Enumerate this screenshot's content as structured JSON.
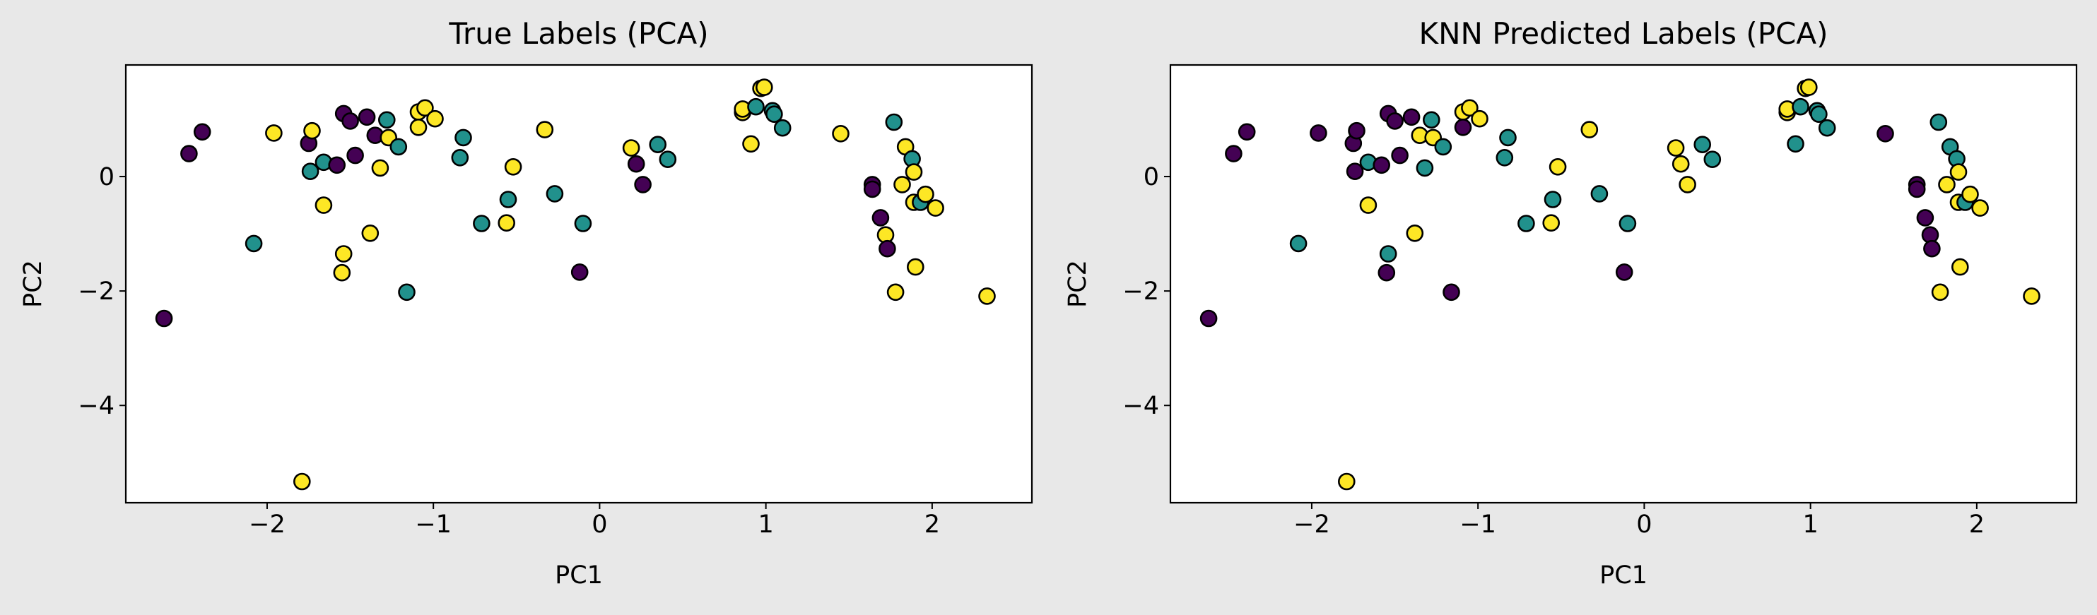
{
  "figure": {
    "background": "#e8e8e8"
  },
  "colors": {
    "purple": "#440154",
    "teal": "#21918c",
    "yellow": "#fde725",
    "edge": "#000000"
  },
  "chart_data": [
    {
      "type": "scatter",
      "title": "True Labels (PCA)",
      "xlabel": "PC1",
      "ylabel": "PC2",
      "xlim": [
        -2.85,
        2.6
      ],
      "ylim": [
        -5.7,
        1.95
      ],
      "xticks": [
        -2,
        -1,
        0,
        1,
        2
      ],
      "xtick_labels": [
        "−2",
        "−1",
        "0",
        "1",
        "2"
      ],
      "yticks": [
        0,
        -2,
        -4
      ],
      "ytick_labels": [
        "0",
        "−2",
        "−4"
      ],
      "grid": false,
      "legend": "none",
      "points": [
        {
          "x": -2.62,
          "y": -2.48,
          "c": "purple"
        },
        {
          "x": -2.47,
          "y": 0.4,
          "c": "purple"
        },
        {
          "x": -2.39,
          "y": 0.78,
          "c": "purple"
        },
        {
          "x": -2.08,
          "y": -1.17,
          "c": "teal"
        },
        {
          "x": -1.96,
          "y": 0.76,
          "c": "yellow"
        },
        {
          "x": -1.79,
          "y": -5.33,
          "c": "yellow"
        },
        {
          "x": -1.75,
          "y": 0.58,
          "c": "purple"
        },
        {
          "x": -1.74,
          "y": 0.09,
          "c": "teal"
        },
        {
          "x": -1.73,
          "y": 0.8,
          "c": "yellow"
        },
        {
          "x": -1.66,
          "y": 0.25,
          "c": "teal"
        },
        {
          "x": -1.66,
          "y": -0.5,
          "c": "yellow"
        },
        {
          "x": -1.58,
          "y": 0.2,
          "c": "purple"
        },
        {
          "x": -1.55,
          "y": -1.68,
          "c": "yellow"
        },
        {
          "x": -1.54,
          "y": -1.35,
          "c": "yellow"
        },
        {
          "x": -1.54,
          "y": 1.1,
          "c": "purple"
        },
        {
          "x": -1.5,
          "y": 0.97,
          "c": "purple"
        },
        {
          "x": -1.47,
          "y": 0.37,
          "c": "purple"
        },
        {
          "x": -1.4,
          "y": 1.04,
          "c": "purple"
        },
        {
          "x": -1.38,
          "y": -0.99,
          "c": "yellow"
        },
        {
          "x": -1.35,
          "y": 0.72,
          "c": "purple"
        },
        {
          "x": -1.32,
          "y": 0.15,
          "c": "yellow"
        },
        {
          "x": -1.28,
          "y": 0.99,
          "c": "teal"
        },
        {
          "x": -1.27,
          "y": 0.68,
          "c": "yellow"
        },
        {
          "x": -1.21,
          "y": 0.52,
          "c": "teal"
        },
        {
          "x": -1.16,
          "y": -2.02,
          "c": "teal"
        },
        {
          "x": -1.09,
          "y": 1.13,
          "c": "yellow"
        },
        {
          "x": -1.09,
          "y": 0.86,
          "c": "yellow"
        },
        {
          "x": -1.05,
          "y": 1.2,
          "c": "yellow"
        },
        {
          "x": -0.99,
          "y": 1.01,
          "c": "yellow"
        },
        {
          "x": -0.84,
          "y": 0.33,
          "c": "teal"
        },
        {
          "x": -0.82,
          "y": 0.68,
          "c": "teal"
        },
        {
          "x": -0.71,
          "y": -0.82,
          "c": "teal"
        },
        {
          "x": -0.56,
          "y": -0.81,
          "c": "yellow"
        },
        {
          "x": -0.55,
          "y": -0.4,
          "c": "teal"
        },
        {
          "x": -0.52,
          "y": 0.17,
          "c": "yellow"
        },
        {
          "x": -0.33,
          "y": 0.82,
          "c": "yellow"
        },
        {
          "x": -0.27,
          "y": -0.3,
          "c": "teal"
        },
        {
          "x": -0.12,
          "y": -1.67,
          "c": "purple"
        },
        {
          "x": -0.1,
          "y": -0.82,
          "c": "teal"
        },
        {
          "x": 0.19,
          "y": 0.5,
          "c": "yellow"
        },
        {
          "x": 0.22,
          "y": 0.22,
          "c": "purple"
        },
        {
          "x": 0.26,
          "y": -0.14,
          "c": "purple"
        },
        {
          "x": 0.35,
          "y": 0.56,
          "c": "teal"
        },
        {
          "x": 0.41,
          "y": 0.3,
          "c": "teal"
        },
        {
          "x": 0.86,
          "y": 1.12,
          "c": "yellow"
        },
        {
          "x": 0.86,
          "y": 1.18,
          "c": "yellow"
        },
        {
          "x": 0.91,
          "y": 0.57,
          "c": "yellow"
        },
        {
          "x": 0.94,
          "y": 1.22,
          "c": "teal"
        },
        {
          "x": 0.97,
          "y": 1.54,
          "c": "yellow"
        },
        {
          "x": 0.99,
          "y": 1.56,
          "c": "yellow"
        },
        {
          "x": 1.04,
          "y": 1.15,
          "c": "teal"
        },
        {
          "x": 1.05,
          "y": 1.09,
          "c": "teal"
        },
        {
          "x": 1.1,
          "y": 0.85,
          "c": "teal"
        },
        {
          "x": 1.45,
          "y": 0.75,
          "c": "yellow"
        },
        {
          "x": 1.64,
          "y": -0.14,
          "c": "purple"
        },
        {
          "x": 1.64,
          "y": -0.22,
          "c": "purple"
        },
        {
          "x": 1.69,
          "y": -0.72,
          "c": "purple"
        },
        {
          "x": 1.72,
          "y": -1.02,
          "c": "yellow"
        },
        {
          "x": 1.73,
          "y": -1.26,
          "c": "purple"
        },
        {
          "x": 1.77,
          "y": 0.95,
          "c": "teal"
        },
        {
          "x": 1.78,
          "y": -2.02,
          "c": "yellow"
        },
        {
          "x": 1.82,
          "y": -0.14,
          "c": "yellow"
        },
        {
          "x": 1.84,
          "y": 0.52,
          "c": "yellow"
        },
        {
          "x": 1.88,
          "y": 0.31,
          "c": "teal"
        },
        {
          "x": 1.89,
          "y": 0.08,
          "c": "yellow"
        },
        {
          "x": 1.89,
          "y": -0.45,
          "c": "yellow"
        },
        {
          "x": 1.9,
          "y": -1.58,
          "c": "yellow"
        },
        {
          "x": 1.93,
          "y": -0.45,
          "c": "teal"
        },
        {
          "x": 1.96,
          "y": -0.31,
          "c": "yellow"
        },
        {
          "x": 2.02,
          "y": -0.55,
          "c": "yellow"
        },
        {
          "x": 2.33,
          "y": -2.09,
          "c": "yellow"
        }
      ]
    },
    {
      "type": "scatter",
      "title": "KNN Predicted Labels (PCA)",
      "xlabel": "PC1",
      "ylabel": "PC2",
      "xlim": [
        -2.85,
        2.6
      ],
      "ylim": [
        -5.7,
        1.95
      ],
      "xticks": [
        -2,
        -1,
        0,
        1,
        2
      ],
      "xtick_labels": [
        "−2",
        "−1",
        "0",
        "1",
        "2"
      ],
      "yticks": [
        0,
        -2,
        -4
      ],
      "ytick_labels": [
        "0",
        "−2",
        "−4"
      ],
      "grid": false,
      "legend": "none",
      "points": [
        {
          "x": -2.62,
          "y": -2.48,
          "c": "purple"
        },
        {
          "x": -2.47,
          "y": 0.4,
          "c": "purple"
        },
        {
          "x": -2.39,
          "y": 0.78,
          "c": "purple"
        },
        {
          "x": -2.08,
          "y": -1.17,
          "c": "teal"
        },
        {
          "x": -1.96,
          "y": 0.76,
          "c": "purple"
        },
        {
          "x": -1.79,
          "y": -5.33,
          "c": "yellow"
        },
        {
          "x": -1.75,
          "y": 0.58,
          "c": "purple"
        },
        {
          "x": -1.74,
          "y": 0.09,
          "c": "purple"
        },
        {
          "x": -1.73,
          "y": 0.8,
          "c": "purple"
        },
        {
          "x": -1.66,
          "y": 0.25,
          "c": "teal"
        },
        {
          "x": -1.66,
          "y": -0.5,
          "c": "yellow"
        },
        {
          "x": -1.58,
          "y": 0.2,
          "c": "purple"
        },
        {
          "x": -1.55,
          "y": -1.68,
          "c": "purple"
        },
        {
          "x": -1.54,
          "y": -1.35,
          "c": "teal"
        },
        {
          "x": -1.54,
          "y": 1.1,
          "c": "purple"
        },
        {
          "x": -1.5,
          "y": 0.97,
          "c": "purple"
        },
        {
          "x": -1.47,
          "y": 0.37,
          "c": "purple"
        },
        {
          "x": -1.4,
          "y": 1.04,
          "c": "purple"
        },
        {
          "x": -1.38,
          "y": -0.99,
          "c": "yellow"
        },
        {
          "x": -1.35,
          "y": 0.72,
          "c": "yellow"
        },
        {
          "x": -1.32,
          "y": 0.15,
          "c": "teal"
        },
        {
          "x": -1.28,
          "y": 0.99,
          "c": "teal"
        },
        {
          "x": -1.27,
          "y": 0.68,
          "c": "yellow"
        },
        {
          "x": -1.21,
          "y": 0.52,
          "c": "teal"
        },
        {
          "x": -1.16,
          "y": -2.02,
          "c": "purple"
        },
        {
          "x": -1.09,
          "y": 1.13,
          "c": "yellow"
        },
        {
          "x": -1.09,
          "y": 0.86,
          "c": "purple"
        },
        {
          "x": -1.05,
          "y": 1.2,
          "c": "yellow"
        },
        {
          "x": -0.99,
          "y": 1.01,
          "c": "yellow"
        },
        {
          "x": -0.84,
          "y": 0.33,
          "c": "teal"
        },
        {
          "x": -0.82,
          "y": 0.68,
          "c": "teal"
        },
        {
          "x": -0.71,
          "y": -0.82,
          "c": "teal"
        },
        {
          "x": -0.56,
          "y": -0.81,
          "c": "yellow"
        },
        {
          "x": -0.55,
          "y": -0.4,
          "c": "teal"
        },
        {
          "x": -0.52,
          "y": 0.17,
          "c": "yellow"
        },
        {
          "x": -0.33,
          "y": 0.82,
          "c": "yellow"
        },
        {
          "x": -0.27,
          "y": -0.3,
          "c": "teal"
        },
        {
          "x": -0.12,
          "y": -1.67,
          "c": "purple"
        },
        {
          "x": -0.1,
          "y": -0.82,
          "c": "teal"
        },
        {
          "x": 0.19,
          "y": 0.5,
          "c": "yellow"
        },
        {
          "x": 0.22,
          "y": 0.22,
          "c": "yellow"
        },
        {
          "x": 0.26,
          "y": -0.14,
          "c": "yellow"
        },
        {
          "x": 0.35,
          "y": 0.56,
          "c": "teal"
        },
        {
          "x": 0.41,
          "y": 0.3,
          "c": "teal"
        },
        {
          "x": 0.86,
          "y": 1.12,
          "c": "yellow"
        },
        {
          "x": 0.86,
          "y": 1.18,
          "c": "yellow"
        },
        {
          "x": 0.91,
          "y": 0.57,
          "c": "teal"
        },
        {
          "x": 0.94,
          "y": 1.22,
          "c": "teal"
        },
        {
          "x": 0.97,
          "y": 1.54,
          "c": "yellow"
        },
        {
          "x": 0.99,
          "y": 1.56,
          "c": "yellow"
        },
        {
          "x": 1.04,
          "y": 1.15,
          "c": "teal"
        },
        {
          "x": 1.05,
          "y": 1.09,
          "c": "teal"
        },
        {
          "x": 1.1,
          "y": 0.85,
          "c": "teal"
        },
        {
          "x": 1.45,
          "y": 0.75,
          "c": "purple"
        },
        {
          "x": 1.64,
          "y": -0.14,
          "c": "purple"
        },
        {
          "x": 1.64,
          "y": -0.22,
          "c": "purple"
        },
        {
          "x": 1.69,
          "y": -0.72,
          "c": "purple"
        },
        {
          "x": 1.72,
          "y": -1.02,
          "c": "purple"
        },
        {
          "x": 1.73,
          "y": -1.26,
          "c": "purple"
        },
        {
          "x": 1.77,
          "y": 0.95,
          "c": "teal"
        },
        {
          "x": 1.78,
          "y": -2.02,
          "c": "yellow"
        },
        {
          "x": 1.82,
          "y": -0.14,
          "c": "yellow"
        },
        {
          "x": 1.84,
          "y": 0.52,
          "c": "teal"
        },
        {
          "x": 1.88,
          "y": 0.31,
          "c": "teal"
        },
        {
          "x": 1.89,
          "y": 0.08,
          "c": "yellow"
        },
        {
          "x": 1.89,
          "y": -0.45,
          "c": "yellow"
        },
        {
          "x": 1.9,
          "y": -1.58,
          "c": "yellow"
        },
        {
          "x": 1.93,
          "y": -0.45,
          "c": "teal"
        },
        {
          "x": 1.96,
          "y": -0.31,
          "c": "yellow"
        },
        {
          "x": 2.02,
          "y": -0.55,
          "c": "yellow"
        },
        {
          "x": 2.33,
          "y": -2.09,
          "c": "yellow"
        }
      ]
    }
  ]
}
